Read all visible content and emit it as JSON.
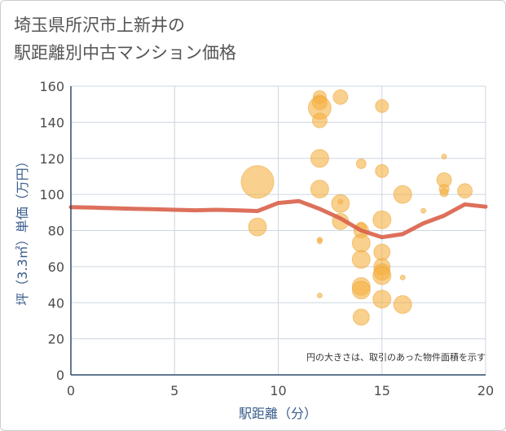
{
  "title_line1": "埼玉県所沢市上新井の",
  "title_line2": "駅距離別中古マンション価格",
  "chart_data": {
    "type": "scatter",
    "title": "埼玉県所沢市上新井の駅距離別中古マンション価格",
    "xlabel": "駅距離（分）",
    "ylabel": "坪（3.3㎡）単価（万円）",
    "xlim": [
      0,
      20
    ],
    "ylim": [
      0,
      160
    ],
    "xticks": [
      0,
      5,
      10,
      15,
      20
    ],
    "yticks": [
      0,
      20,
      40,
      60,
      80,
      100,
      120,
      140,
      160
    ],
    "grid": true,
    "annotation": "円の大きさは、取引のあった物件面積を示す",
    "colors": {
      "bubble": "#f5b041",
      "bubble_stroke": "#eaa12d",
      "line": "#d9604a",
      "grid": "#cdd6e2",
      "axis": "#2f4a6b"
    },
    "bubbles": [
      {
        "x": 9,
        "y": 107,
        "size": 20
      },
      {
        "x": 9,
        "y": 82,
        "size": 11
      },
      {
        "x": 12,
        "y": 154,
        "size": 8
      },
      {
        "x": 12,
        "y": 151,
        "size": 9
      },
      {
        "x": 12,
        "y": 148,
        "size": 14
      },
      {
        "x": 12,
        "y": 141,
        "size": 9
      },
      {
        "x": 12,
        "y": 120,
        "size": 11
      },
      {
        "x": 12,
        "y": 103,
        "size": 11
      },
      {
        "x": 12,
        "y": 75,
        "size": 3
      },
      {
        "x": 12,
        "y": 74,
        "size": 3
      },
      {
        "x": 12,
        "y": 44,
        "size": 3
      },
      {
        "x": 13,
        "y": 154,
        "size": 9
      },
      {
        "x": 13,
        "y": 96,
        "size": 3
      },
      {
        "x": 13,
        "y": 95,
        "size": 11
      },
      {
        "x": 13,
        "y": 85,
        "size": 10
      },
      {
        "x": 14,
        "y": 117,
        "size": 6
      },
      {
        "x": 14,
        "y": 82,
        "size": 6
      },
      {
        "x": 14,
        "y": 80,
        "size": 9
      },
      {
        "x": 14,
        "y": 73,
        "size": 11
      },
      {
        "x": 14,
        "y": 64,
        "size": 11
      },
      {
        "x": 14,
        "y": 49,
        "size": 11
      },
      {
        "x": 14,
        "y": 47,
        "size": 11
      },
      {
        "x": 14,
        "y": 32,
        "size": 10
      },
      {
        "x": 15,
        "y": 149,
        "size": 8
      },
      {
        "x": 15,
        "y": 113,
        "size": 8
      },
      {
        "x": 15,
        "y": 86,
        "size": 11
      },
      {
        "x": 15,
        "y": 68,
        "size": 10
      },
      {
        "x": 15,
        "y": 60,
        "size": 10
      },
      {
        "x": 15,
        "y": 57,
        "size": 10
      },
      {
        "x": 15,
        "y": 55,
        "size": 11
      },
      {
        "x": 15,
        "y": 42,
        "size": 11
      },
      {
        "x": 16,
        "y": 100,
        "size": 11
      },
      {
        "x": 16,
        "y": 54,
        "size": 3
      },
      {
        "x": 16,
        "y": 39,
        "size": 11
      },
      {
        "x": 17,
        "y": 91,
        "size": 3
      },
      {
        "x": 18,
        "y": 121,
        "size": 3
      },
      {
        "x": 18,
        "y": 108,
        "size": 9
      },
      {
        "x": 18,
        "y": 103,
        "size": 6
      },
      {
        "x": 18,
        "y": 101,
        "size": 5
      },
      {
        "x": 19,
        "y": 102,
        "size": 9
      }
    ],
    "trend_line": {
      "x": [
        0,
        1,
        2,
        3,
        4,
        5,
        6,
        7,
        8,
        9,
        10,
        11,
        12,
        13,
        14,
        15,
        16,
        17,
        18,
        19,
        20
      ],
      "y": [
        93,
        92.7,
        92.4,
        92.1,
        91.8,
        91.5,
        91.2,
        91.5,
        91.2,
        90.8,
        95.3,
        96.3,
        92.0,
        86.7,
        80.0,
        76.3,
        78.0,
        84.0,
        88.3,
        94.5,
        93.2
      ]
    }
  }
}
